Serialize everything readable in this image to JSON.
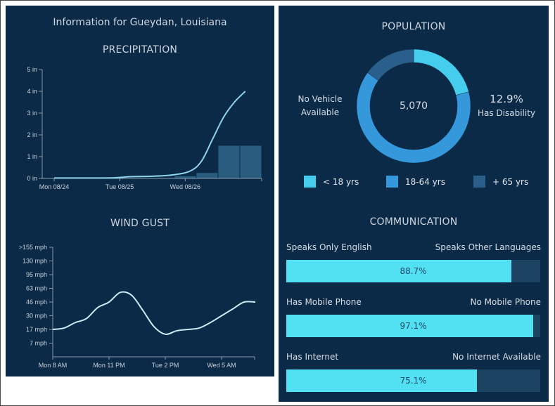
{
  "header": {
    "title": "Information for Gueydan, Louisiana"
  },
  "colors": {
    "panel_bg": "#0a2a47",
    "line": "#8fd3ec",
    "precip_bar": "#2a5c80",
    "under18": "#45cdee",
    "age18_64": "#3498db",
    "over65": "#2a5f8c",
    "bar_fill": "#52e0f3",
    "bar_track": "#1c4462"
  },
  "chart_data": [
    {
      "type": "line",
      "title": "PRECIPITATION",
      "ylabel": "",
      "xlabel": "",
      "ylim": [
        0,
        5
      ],
      "yticks": [
        {
          "value": 0,
          "label": "0 in"
        },
        {
          "value": 1,
          "label": "1 in"
        },
        {
          "value": 2,
          "label": "2 in"
        },
        {
          "value": 3,
          "label": "3 in"
        },
        {
          "value": 4,
          "label": "4 in"
        },
        {
          "value": 5,
          "label": "5 in"
        }
      ],
      "xlim": [
        0,
        72
      ],
      "xticks": [
        {
          "value": 0,
          "label": "Mon 08/24"
        },
        {
          "value": 24,
          "label": "Tue 08/25"
        },
        {
          "value": 48,
          "label": "Wed 08/26"
        }
      ],
      "series": [
        {
          "name": "Cumulative precipitation",
          "kind": "line",
          "x": [
            0,
            12,
            22,
            28,
            36,
            44,
            50,
            54,
            58,
            62,
            66,
            70
          ],
          "y": [
            0.02,
            0.02,
            0.03,
            0.08,
            0.1,
            0.17,
            0.35,
            0.8,
            1.8,
            2.8,
            3.5,
            4.0
          ]
        },
        {
          "name": "Period precipitation",
          "kind": "bar",
          "x_start": [
            44,
            52,
            60,
            68
          ],
          "x_end": [
            52,
            60,
            68,
            76
          ],
          "values": [
            0.1,
            0.25,
            1.5,
            1.5
          ]
        }
      ],
      "grid": false
    },
    {
      "type": "line",
      "title": "WIND GUST",
      "ylabel": "",
      "xlabel": "",
      "ylim": [
        0,
        8
      ],
      "yticks": [
        {
          "value": 1,
          "label": "7 mph"
        },
        {
          "value": 2,
          "label": "17 mph"
        },
        {
          "value": 3,
          "label": "30 mph"
        },
        {
          "value": 4,
          "label": "46 mph"
        },
        {
          "value": 5,
          "label": "63 mph"
        },
        {
          "value": 6,
          "label": "95 mph"
        },
        {
          "value": 7,
          "label": "130 mph"
        },
        {
          "value": 8,
          "label": ">155 mph"
        }
      ],
      "xlim": [
        0,
        60
      ],
      "xticks": [
        {
          "value": 0,
          "label": "Mon 8 AM"
        },
        {
          "value": 15,
          "label": "Mon 11 PM"
        },
        {
          "value": 30,
          "label": "Tue 2 PM"
        },
        {
          "value": 45,
          "label": "Wed 5 AM"
        }
      ],
      "series": [
        {
          "name": "Wind gust",
          "x": [
            0,
            3,
            6,
            9,
            12,
            15,
            18,
            21,
            24,
            27,
            30,
            33,
            36,
            39,
            42,
            45,
            48,
            51,
            54
          ],
          "y": [
            2.0,
            2.1,
            2.5,
            2.8,
            3.6,
            4.0,
            4.7,
            4.5,
            3.4,
            2.2,
            1.65,
            1.9,
            2.0,
            2.1,
            2.5,
            3.0,
            3.5,
            4.0,
            4.0
          ]
        }
      ],
      "grid": false
    },
    {
      "type": "pie",
      "title": "POPULATION",
      "center_label": "5,070",
      "slices": [
        {
          "label": "< 18 yrs",
          "value": 21
        },
        {
          "label": "18-64 yrs",
          "value": 64
        },
        {
          "label": "+ 65 yrs",
          "value": 15
        }
      ],
      "legend": "bottom"
    }
  ],
  "population": {
    "title": "POPULATION",
    "total": "5,070",
    "left_stat": {
      "line1": "No Vehicle",
      "line2": "Available"
    },
    "right_stat": {
      "value": "12.9%",
      "label": "Has Disability"
    },
    "legend": [
      {
        "label": "< 18 yrs"
      },
      {
        "label": "18-64 yrs"
      },
      {
        "label": "+ 65 yrs"
      }
    ]
  },
  "communication": {
    "title": "COMMUNICATION",
    "rows": [
      {
        "left": "Speaks Only English",
        "right": "Speaks Other Languages",
        "value_label": "88.7%",
        "percent": 88.7
      },
      {
        "left": "Has Mobile Phone",
        "right": "No Mobile Phone",
        "value_label": "97.1%",
        "percent": 97.1
      },
      {
        "left": "Has Internet",
        "right": "No Internet Available",
        "value_label": "75.1%",
        "percent": 75.1
      }
    ]
  }
}
